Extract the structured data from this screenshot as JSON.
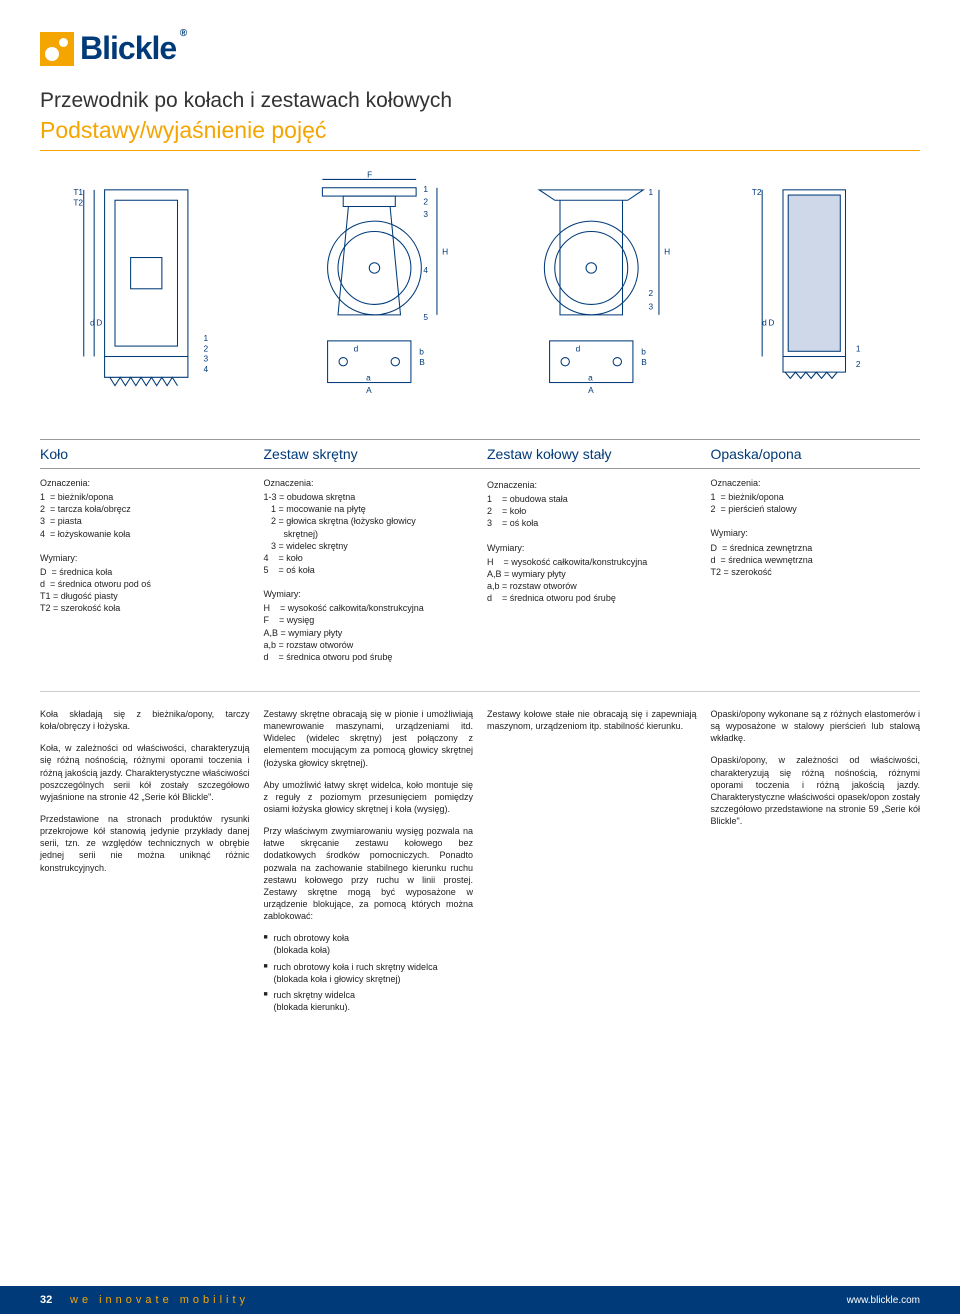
{
  "logo": {
    "text": "Blickle"
  },
  "title1": "Przewodnik po kołach i zestawach kołowych",
  "title2": "Podstawy/wyjaśnienie pojęć",
  "headers": [
    "Koło",
    "Zestaw skrętny",
    "Zestaw kołowy stały",
    "Opaska/opona"
  ],
  "col1": {
    "ozn_label": "Oznaczenia:",
    "ozn": [
      "1  = bieżnik/opona",
      "2  = tarcza koła/obręcz",
      "3  = piasta",
      "4  = łożyskowanie koła"
    ],
    "wym_label": "Wymiary:",
    "wym": [
      "D  = średnica koła",
      "d  = średnica otworu pod oś",
      "T1 = długość piasty",
      "T2 = szerokość koła"
    ],
    "p1": "Koła składają się z bieżnika/opony, tarczy koła/obręczy i łożyska.",
    "p2": "Koła, w zależności od właściwości, charakteryzują się różną nośnością, różnymi oporami toczenia i różną jakością jazdy. Charakterystyczne właściwości poszczególnych serii kół zostały szczegółowo wyjaśnione na stronie 42 „Serie kół Blickle\".",
    "p3": "Przedstawione na stronach produktów rysunki przekrojowe kół stanowią jedynie przykłady danej serii, tzn. ze względów technicznych w obrębie jednej serii nie można uniknąć różnic konstrukcyjnych."
  },
  "col2": {
    "ozn_label": "Oznaczenia:",
    "ozn": [
      "1-3 = obudowa skrętna",
      "   1 = mocowanie na płytę",
      "   2 = głowica skrętna (łożysko głowicy",
      "        skrętnej)",
      "   3 = widelec skrętny",
      "4    = koło",
      "5    = oś koła"
    ],
    "wym_label": "Wymiary:",
    "wym": [
      "H    = wysokość całkowita/konstrukcyjna",
      "F    = wysięg",
      "A,B = wymiary płyty",
      "a,b = rozstaw otworów",
      "d    = średnica otworu pod śrubę"
    ],
    "p1": "Zestawy skrętne obracają się w pionie i umożliwiają manewrowanie maszynami, urządzeniami itd. Widelec (widelec skrętny) jest połączony z elementem mocującym za pomocą głowicy skrętnej (łożyska głowicy skrętnej).",
    "p2": "Aby umożliwić łatwy skręt widelca, koło montuje się z reguły z poziomym przesunięciem pomiędzy osiami łożyska głowicy skrętnej i koła (wysięg).",
    "p3": "Przy właściwym zwymiarowaniu wysięg pozwala na łatwe skręcanie zestawu kołowego bez dodatkowych środków pomocniczych. Ponadto pozwala na zachowanie stabilnego kierunku ruchu zestawu kołowego przy ruchu w linii prostej. Zestawy skrętne mogą być wyposażone w urządzenie blokujące, za pomocą których można zablokować:",
    "bullets": [
      "ruch obrotowy koła\n(blokada koła)",
      "ruch obrotowy koła i ruch skrętny widelca\n(blokada koła i głowicy skrętnej)",
      "ruch skrętny widelca\n(blokada kierunku)."
    ]
  },
  "col3": {
    "ozn_label": "Oznaczenia:",
    "ozn": [
      "1    = obudowa stała",
      "2    = koło",
      "3    = oś koła"
    ],
    "wym_label": "Wymiary:",
    "wym": [
      "H    = wysokość całkowita/konstrukcyjna",
      "A,B = wymiary płyty",
      "a,b = rozstaw otworów",
      "d    = średnica otworu pod śrubę"
    ],
    "p1": "Zestawy kołowe stałe nie obracają się i zapewniają maszynom, urządzeniom itp. stabilność kierunku."
  },
  "col4": {
    "ozn_label": "Oznaczenia:",
    "ozn": [
      "1  = bieżnik/opona",
      "2  = pierścień stalowy"
    ],
    "wym_label": "Wymiary:",
    "wym": [
      "D  = średnica zewnętrzna",
      "d  = średnica wewnętrzna",
      "T2 = szerokość"
    ],
    "p1": "Opaski/opony wykonane są z różnych elastomerów i są wyposażone w stalowy pierścień lub stalową wkładkę.",
    "p2": "Opaski/opony, w zależności od właściwości, charakteryzują się różną nośnością, różnymi oporami toczenia i różną jakością jazdy. Charakterystyczne właściwości opasek/opon zostały szczegółowo przedstawione na stronie 59 „Serie kół Blickle\"."
  },
  "footer": {
    "page": "32",
    "tagline": "we innovate mobility",
    "url": "www.blickle.com"
  },
  "diagram_style": {
    "stroke": "#003a78",
    "stroke_width": 1,
    "label_font_size": 8,
    "label_color": "#003a78"
  }
}
